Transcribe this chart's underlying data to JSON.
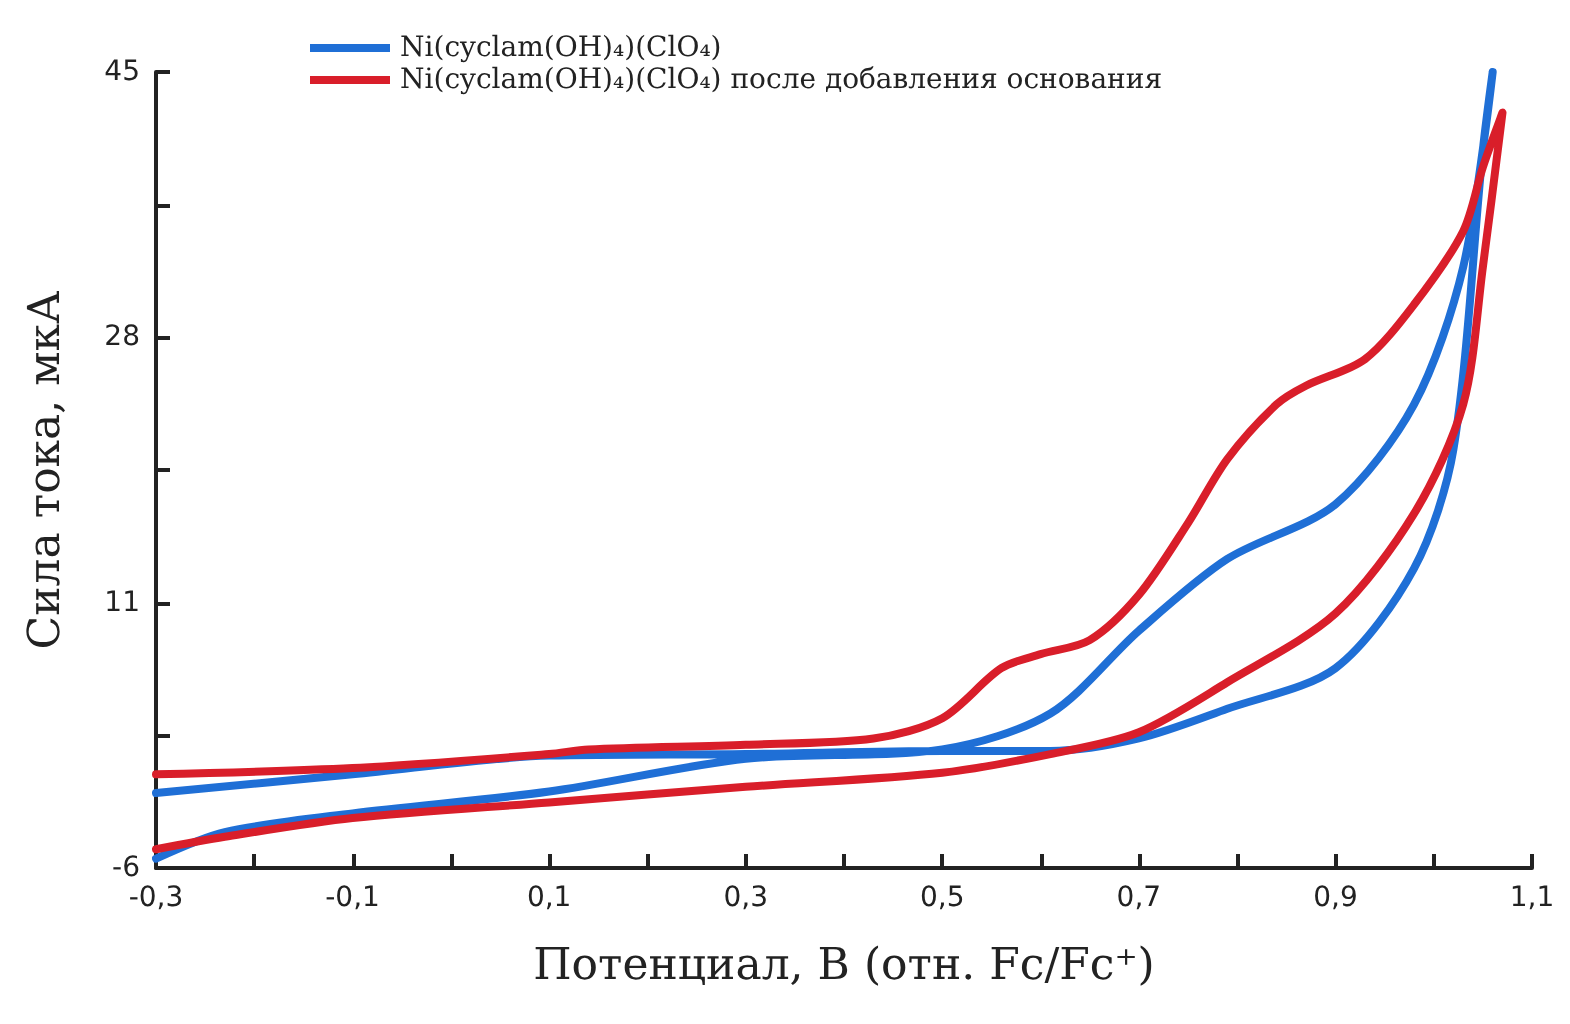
{
  "chart_data": {
    "type": "line",
    "xlabel": "Потенциал, В (отн. Fc/Fc⁺)",
    "ylabel": "Сила тока, мкА",
    "xlim": [
      -0.3,
      1.1
    ],
    "ylim": [
      -6,
      45
    ],
    "xticks": [
      {
        "value": -0.3,
        "label": "-0,3"
      },
      {
        "value": -0.2,
        "label": null
      },
      {
        "value": -0.1,
        "label": "-0,1"
      },
      {
        "value": 0,
        "label": null
      },
      {
        "value": 0.1,
        "label": "0,1"
      },
      {
        "value": 0.2,
        "label": null
      },
      {
        "value": 0.3,
        "label": "0,3"
      },
      {
        "value": 0.4,
        "label": null
      },
      {
        "value": 0.5,
        "label": "0,5"
      },
      {
        "value": 0.6,
        "label": null
      },
      {
        "value": 0.7,
        "label": "0,7"
      },
      {
        "value": 0.8,
        "label": null
      },
      {
        "value": 0.9,
        "label": "0,9"
      },
      {
        "value": 1.0,
        "label": null
      },
      {
        "value": 1.1,
        "label": "1,1"
      }
    ],
    "yticks": [
      -6,
      {
        "value": 2.5,
        "label": null
      },
      11,
      {
        "value": 19.5,
        "label": null
      },
      28,
      {
        "value": 36.5,
        "label": null
      },
      45
    ],
    "grid": false,
    "legend": "top",
    "marker": "none",
    "line_style": "solid",
    "series": [
      {
        "name": "Ni(cyclam(OH)₄)(ClO₄)",
        "color": "#1f6fd6",
        "x": [
          -0.3,
          -0.23,
          -0.1,
          0.1,
          0.3,
          0.5,
          0.61,
          0.7,
          0.79,
          0.9,
          0.98,
          1.03,
          1.06,
          1.05,
          1.02,
          0.98,
          0.9,
          0.79,
          0.7,
          0.61,
          0.5,
          0.3,
          0.1,
          -0.1,
          -0.3
        ],
        "values": [
          -5.4,
          -3.7,
          -2.5,
          -1.1,
          1.0,
          1.6,
          3.9,
          9.2,
          13.8,
          17.3,
          23.7,
          32.5,
          45,
          40.0,
          20.8,
          13.2,
          6.8,
          4.2,
          2.3,
          1.5,
          1.5,
          1.3,
          1.2,
          0.0,
          -1.2
        ]
      },
      {
        "name": "Ni(cyclam(OH)₄)(ClO₄) после добавления основания",
        "color": "#d91e2a",
        "x": [
          -0.3,
          -0.23,
          -0.1,
          0.1,
          0.3,
          0.5,
          0.61,
          0.7,
          0.79,
          0.9,
          0.98,
          1.03,
          1.05,
          1.07,
          1.05,
          1.03,
          0.98,
          0.93,
          0.87,
          0.84,
          0.79,
          0.75,
          0.7,
          0.65,
          0.6,
          0.56,
          0.5,
          0.43,
          0.3,
          0.14,
          0.1,
          -0.1,
          -0.3
        ],
        "values": [
          -4.8,
          -4.0,
          -2.8,
          -1.8,
          -0.8,
          0.1,
          1.3,
          2.7,
          5.9,
          10.3,
          16.7,
          23.7,
          32.5,
          42.4,
          38.9,
          34.8,
          30.1,
          26.6,
          24.9,
          23.7,
          20.2,
          16.1,
          11.5,
          8.6,
          7.7,
          6.8,
          3.6,
          2.3,
          1.9,
          1.6,
          1.3,
          0.4,
          0.0
        ]
      }
    ]
  }
}
